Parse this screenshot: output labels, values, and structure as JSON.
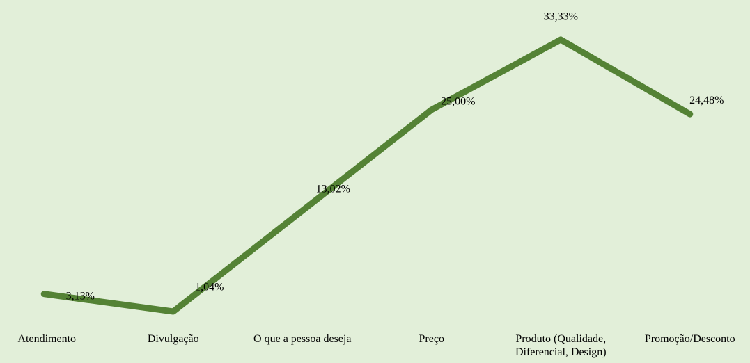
{
  "chart_data": {
    "type": "line",
    "categories": [
      "Atendimento",
      "Divulgação",
      "O que a pessoa deseja",
      "Preço",
      "Produto (Qualidade, Diferencial, Design)",
      "Promoção/Desconto"
    ],
    "series": [
      {
        "color": "#548235",
        "values": [
          3.13,
          1.04,
          13.02,
          25.0,
          33.33,
          24.48
        ],
        "value_labels": [
          "3,13%",
          "1,04%",
          "13,02%",
          "25,00%",
          "33,33%",
          "24,48%"
        ]
      }
    ],
    "ylim": [
      0,
      35
    ]
  }
}
